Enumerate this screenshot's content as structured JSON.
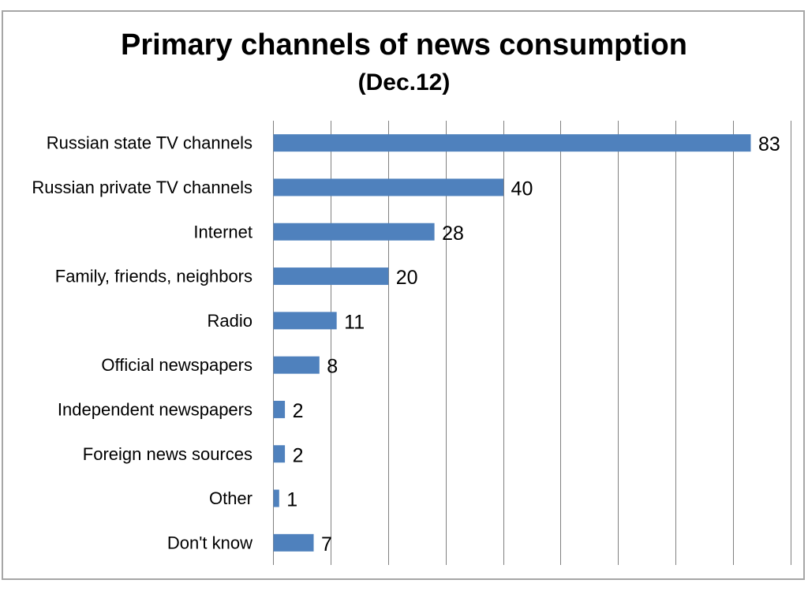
{
  "chart_data": {
    "type": "bar",
    "orientation": "horizontal",
    "title": "Primary channels of news consumption",
    "subtitle": "(Dec.12)",
    "categories": [
      "Russian state TV channels",
      "Russian private TV channels",
      "Internet",
      "Family, friends, neighbors",
      "Radio",
      "Official newspapers",
      "Independent newspapers",
      "Foreign news sources",
      "Other",
      "Don't know"
    ],
    "values": [
      83,
      40,
      28,
      20,
      11,
      8,
      2,
      2,
      1,
      7
    ],
    "xlim": [
      0,
      90
    ],
    "gridline_step": 10,
    "grid": true,
    "data_labels": true,
    "legend": "none",
    "xlabel": "",
    "ylabel": ""
  },
  "colors": {
    "bar": "#4f81bd",
    "gridline": "#808080",
    "frame": "#a6a6a6"
  }
}
